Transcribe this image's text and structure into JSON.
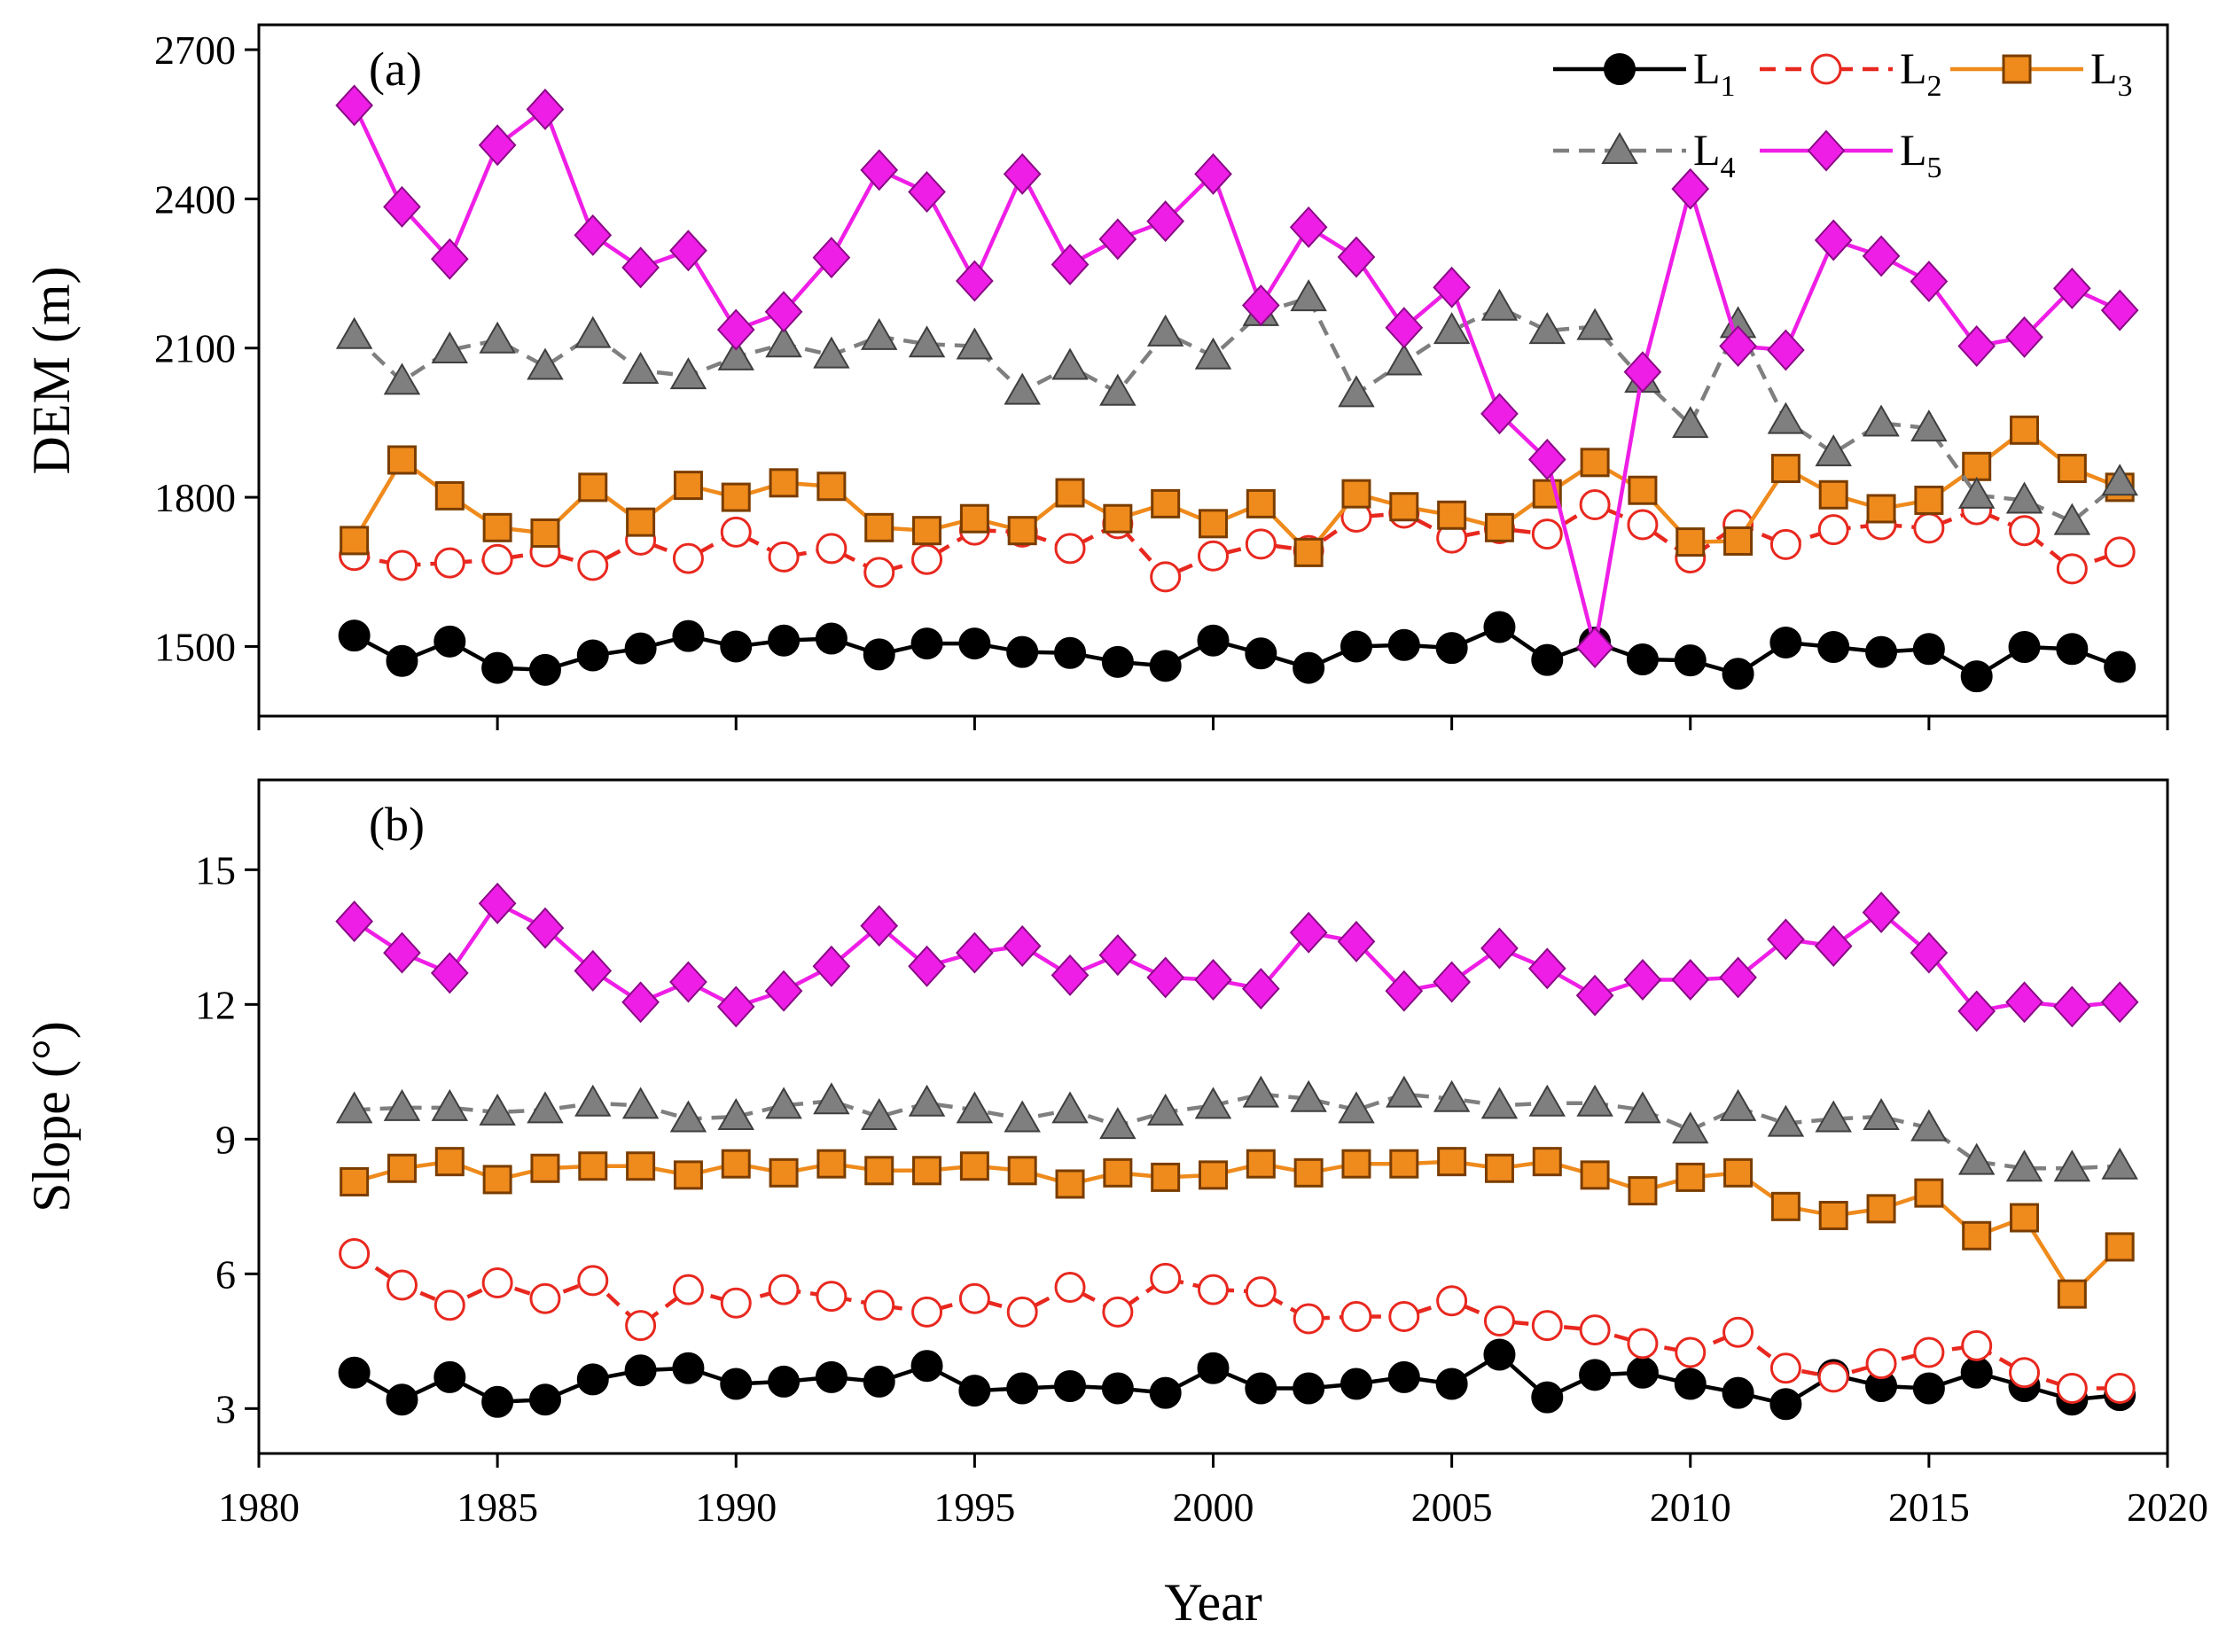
{
  "chart_data": [
    {
      "id": "a",
      "type": "line",
      "panel_label": "(a)",
      "ylabel": "DEM (m)",
      "xlabel": "",
      "xlim": [
        1980,
        2020
      ],
      "ylim": [
        1360,
        2750
      ],
      "yticks": [
        1500,
        1800,
        2100,
        2400,
        2700
      ],
      "xticks": [
        1980,
        1985,
        1990,
        1995,
        2000,
        2005,
        2010,
        2015,
        2020
      ],
      "show_xtick_labels": false,
      "legend_position": "top-right",
      "x": [
        1982,
        1983,
        1984,
        1985,
        1986,
        1987,
        1988,
        1989,
        1990,
        1991,
        1992,
        1993,
        1994,
        1995,
        1996,
        1997,
        1998,
        1999,
        2000,
        2001,
        2002,
        2003,
        2004,
        2005,
        2006,
        2007,
        2008,
        2009,
        2010,
        2011,
        2012,
        2013,
        2014,
        2015,
        2016,
        2017,
        2018,
        2019
      ],
      "series": [
        {
          "key": "L1",
          "name_main": "L",
          "name_sub": "1",
          "color": "#000000",
          "dash": "solid",
          "marker": "circle-filled",
          "values": [
            1522,
            1471,
            1510,
            1457,
            1453,
            1482,
            1496,
            1521,
            1500,
            1512,
            1516,
            1484,
            1506,
            1506,
            1489,
            1487,
            1469,
            1461,
            1512,
            1486,
            1457,
            1500,
            1503,
            1497,
            1539,
            1473,
            1508,
            1474,
            1472,
            1445,
            1508,
            1499,
            1489,
            1495,
            1440,
            1499,
            1495,
            1459
          ]
        },
        {
          "key": "L2",
          "name_main": "L",
          "name_sub": "2",
          "color": "#e8281f",
          "dash": "dash",
          "marker": "circle-open",
          "values": [
            1683,
            1663,
            1668,
            1675,
            1690,
            1663,
            1714,
            1677,
            1730,
            1680,
            1697,
            1649,
            1675,
            1734,
            1730,
            1697,
            1747,
            1640,
            1682,
            1706,
            1693,
            1760,
            1768,
            1718,
            1737,
            1726,
            1785,
            1745,
            1678,
            1745,
            1705,
            1735,
            1745,
            1738,
            1775,
            1733,
            1656,
            1690
          ]
        },
        {
          "key": "L3",
          "name_main": "L",
          "name_sub": "3",
          "color": "#ef8a1c",
          "dash": "solid",
          "marker": "square-filled",
          "values": [
            1713,
            1875,
            1803,
            1739,
            1728,
            1820,
            1750,
            1824,
            1800,
            1829,
            1822,
            1739,
            1733,
            1757,
            1733,
            1809,
            1757,
            1787,
            1747,
            1787,
            1689,
            1807,
            1781,
            1764,
            1739,
            1807,
            1870,
            1814,
            1710,
            1712,
            1858,
            1805,
            1777,
            1794,
            1862,
            1935,
            1858,
            1820
          ]
        },
        {
          "key": "L4",
          "name_main": "L",
          "name_sub": "4",
          "color": "#7f7f7f",
          "dash": "dash",
          "marker": "triangle-filled",
          "values": [
            2125,
            2033,
            2096,
            2116,
            2063,
            2127,
            2055,
            2044,
            2082,
            2108,
            2086,
            2123,
            2108,
            2104,
            2013,
            2063,
            2011,
            2130,
            2084,
            2171,
            2201,
            2008,
            2072,
            2135,
            2182,
            2135,
            2143,
            2037,
            1946,
            2147,
            1954,
            1889,
            1949,
            1939,
            1804,
            1794,
            1751,
            1830
          ]
        },
        {
          "key": "L5",
          "name_main": "L",
          "name_sub": "5",
          "color": "#ef1ee6",
          "dash": "solid",
          "marker": "diamond-filled",
          "values": [
            2588,
            2384,
            2279,
            2508,
            2580,
            2327,
            2262,
            2296,
            2137,
            2173,
            2282,
            2458,
            2414,
            2235,
            2450,
            2268,
            2319,
            2355,
            2450,
            2186,
            2343,
            2283,
            2141,
            2222,
            1968,
            1876,
            1498,
            2052,
            2420,
            2104,
            2096,
            2317,
            2285,
            2234,
            2104,
            2122,
            2220,
            2176
          ]
        }
      ]
    },
    {
      "id": "b",
      "type": "line",
      "panel_label": "(b)",
      "ylabel": "Slope (°)",
      "xlabel": "Year",
      "xlim": [
        1980,
        2020
      ],
      "ylim": [
        2,
        17
      ],
      "yticks": [
        3,
        6,
        9,
        12,
        15
      ],
      "xticks": [
        1980,
        1985,
        1990,
        1995,
        2000,
        2005,
        2010,
        2015,
        2020
      ],
      "show_xtick_labels": true,
      "x": [
        1982,
        1983,
        1984,
        1985,
        1986,
        1987,
        1988,
        1989,
        1990,
        1991,
        1992,
        1993,
        1994,
        1995,
        1996,
        1997,
        1998,
        1999,
        2000,
        2001,
        2002,
        2003,
        2004,
        2005,
        2006,
        2007,
        2008,
        2009,
        2010,
        2011,
        2012,
        2013,
        2014,
        2015,
        2016,
        2017,
        2018,
        2019
      ],
      "series": [
        {
          "key": "L1",
          "color": "#000000",
          "dash": "solid",
          "marker": "circle-filled",
          "values": [
            3.8,
            3.2,
            3.7,
            3.15,
            3.2,
            3.65,
            3.85,
            3.9,
            3.55,
            3.6,
            3.7,
            3.6,
            3.95,
            3.4,
            3.45,
            3.5,
            3.45,
            3.35,
            3.9,
            3.45,
            3.45,
            3.55,
            3.7,
            3.55,
            4.2,
            3.25,
            3.75,
            3.8,
            3.55,
            3.35,
            3.1,
            3.75,
            3.5,
            3.45,
            3.8,
            3.5,
            3.2,
            3.3
          ]
        },
        {
          "key": "L2",
          "color": "#e8281f",
          "dash": "dash",
          "marker": "circle-open",
          "values": [
            6.45,
            5.75,
            5.3,
            5.8,
            5.45,
            5.85,
            4.85,
            5.65,
            5.35,
            5.65,
            5.5,
            5.3,
            5.15,
            5.45,
            5.15,
            5.7,
            5.15,
            5.9,
            5.65,
            5.6,
            5.0,
            5.05,
            5.05,
            5.4,
            4.95,
            4.85,
            4.75,
            4.45,
            4.25,
            4.7,
            3.9,
            3.7,
            4.0,
            4.25,
            4.4,
            3.8,
            3.45,
            3.45
          ]
        },
        {
          "key": "L3",
          "color": "#ef8a1c",
          "dash": "solid",
          "marker": "square-filled",
          "values": [
            8.05,
            8.35,
            8.5,
            8.1,
            8.35,
            8.4,
            8.4,
            8.2,
            8.45,
            8.25,
            8.45,
            8.3,
            8.3,
            8.4,
            8.3,
            8.0,
            8.25,
            8.15,
            8.2,
            8.45,
            8.25,
            8.45,
            8.45,
            8.5,
            8.35,
            8.5,
            8.2,
            7.85,
            8.15,
            8.25,
            7.5,
            7.3,
            7.45,
            7.8,
            6.85,
            7.25,
            5.55,
            6.6
          ]
        },
        {
          "key": "L4",
          "color": "#7f7f7f",
          "dash": "dash",
          "marker": "triangle-filled",
          "values": [
            9.65,
            9.7,
            9.7,
            9.6,
            9.65,
            9.8,
            9.75,
            9.45,
            9.5,
            9.75,
            9.85,
            9.5,
            9.8,
            9.65,
            9.45,
            9.65,
            9.3,
            9.6,
            9.75,
            10.0,
            9.9,
            9.65,
            10.0,
            9.9,
            9.75,
            9.8,
            9.8,
            9.65,
            9.2,
            9.7,
            9.35,
            9.45,
            9.5,
            9.25,
            8.5,
            8.35,
            8.35,
            8.4
          ]
        },
        {
          "key": "L5",
          "color": "#ef1ee6",
          "dash": "solid",
          "marker": "diamond-filled",
          "values": [
            13.85,
            13.15,
            12.7,
            14.25,
            13.7,
            12.75,
            12.05,
            12.5,
            11.95,
            12.3,
            12.85,
            13.75,
            12.85,
            13.15,
            13.3,
            12.65,
            13.1,
            12.6,
            12.55,
            12.35,
            13.6,
            13.4,
            12.3,
            12.5,
            13.25,
            12.8,
            12.2,
            12.55,
            12.55,
            12.6,
            13.45,
            13.3,
            14.05,
            13.15,
            11.85,
            12.05,
            11.95,
            12.05
          ]
        }
      ]
    }
  ]
}
